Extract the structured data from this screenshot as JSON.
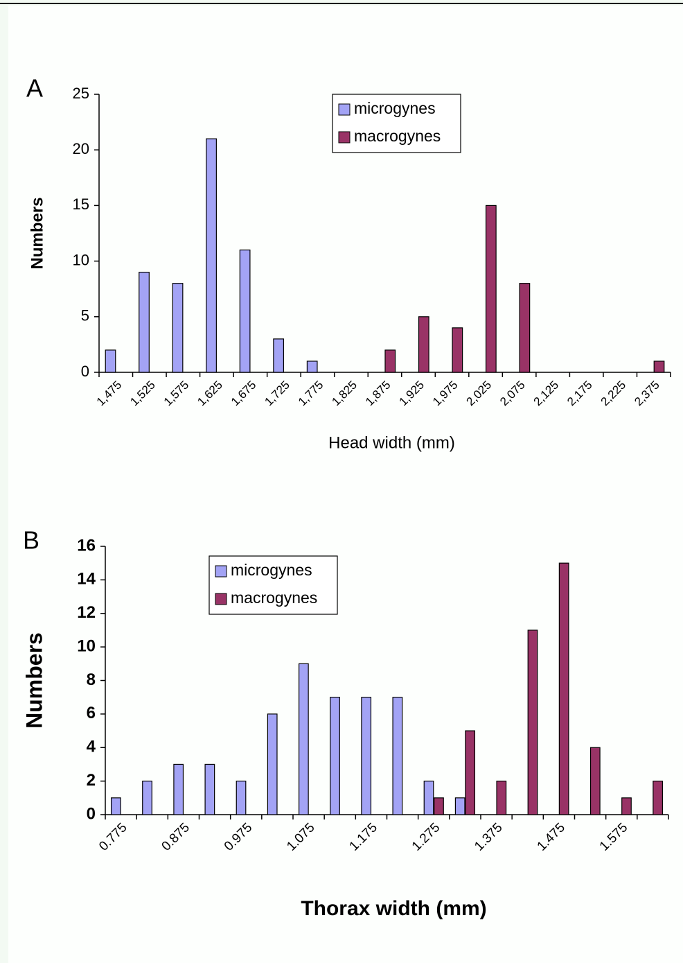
{
  "chart_data": [
    {
      "type": "bar",
      "panel_label": "A",
      "xlabel": "Head width (mm)",
      "ylabel": "Numbers",
      "categories": [
        "1,475",
        "1,525",
        "1,575",
        "1,625",
        "1,675",
        "1,725",
        "1,775",
        "1,825",
        "1,875",
        "1,925",
        "1,975",
        "2,025",
        "2,075",
        "2,125",
        "2,175",
        "2,225",
        "2,375"
      ],
      "series": [
        {
          "name": "microgynes",
          "color": "#a3a3f5",
          "values": [
            2,
            9,
            8,
            21,
            11,
            3,
            1,
            0,
            0,
            0,
            0,
            0,
            0,
            0,
            0,
            0,
            0
          ]
        },
        {
          "name": "macrogynes",
          "color": "#993366",
          "values": [
            0,
            0,
            0,
            0,
            0,
            0,
            0,
            0,
            2,
            5,
            4,
            15,
            8,
            0,
            0,
            0,
            1
          ]
        }
      ],
      "ylim": [
        0,
        25
      ],
      "yticks": [
        0,
        5,
        10,
        15,
        20,
        25
      ],
      "grid": false,
      "legend": "upper center"
    },
    {
      "type": "bar",
      "panel_label": "B",
      "xlabel": "Thorax width (mm)",
      "ylabel": "Numbers",
      "categories": [
        "0.775",
        null,
        "0.875",
        null,
        "0.975",
        null,
        "1.075",
        null,
        "1.175",
        null,
        "1.275",
        null,
        "1.375",
        null,
        "1.475",
        null,
        "1.575",
        null
      ],
      "series": [
        {
          "name": "microgynes",
          "color": "#a3a3f5",
          "values": [
            1,
            2,
            3,
            3,
            2,
            6,
            9,
            7,
            7,
            7,
            2,
            1,
            0,
            0,
            0,
            0,
            0,
            0
          ]
        },
        {
          "name": "macrogynes",
          "color": "#993366",
          "values": [
            0,
            0,
            0,
            0,
            0,
            0,
            0,
            0,
            0,
            0,
            1,
            5,
            2,
            11,
            15,
            4,
            1,
            2
          ]
        }
      ],
      "ylim": [
        0,
        16
      ],
      "yticks": [
        0,
        2,
        4,
        6,
        8,
        10,
        12,
        14,
        16
      ],
      "grid": false,
      "legend": "upper left"
    }
  ]
}
